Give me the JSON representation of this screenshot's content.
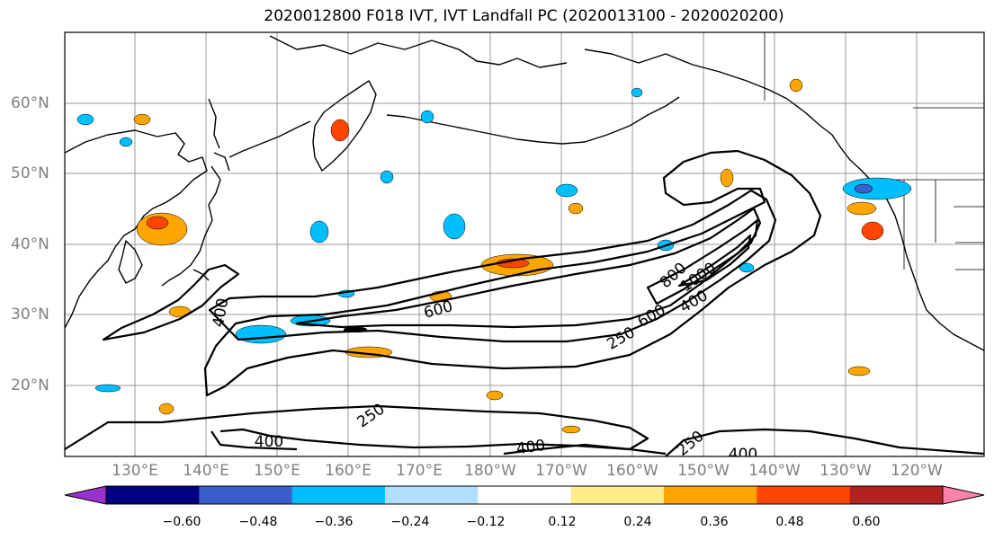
{
  "title": "2020012800 F018 IVT, IVT Landfall PC (2020013100 - 2020020200)",
  "lat_labels": [
    "60°N",
    "50°N",
    "40°N",
    "30°N",
    "20°N"
  ],
  "lon_labels": [
    "130°E",
    "140°E",
    "150°E",
    "160°E",
    "170°E",
    "180°W",
    "170°W",
    "160°W",
    "150°W",
    "140°W",
    "130°W",
    "120°W"
  ],
  "colorbar": {
    "colors": [
      "#9932CC",
      "#000080",
      "#3A5FCD",
      "#00BFFF",
      "#B2DFFF",
      "#FFFFFF",
      "#FFEC8B",
      "#FFA500",
      "#FF4500",
      "#B22222",
      "#FF82AB"
    ],
    "tick_labels": [
      "−0.60",
      "−0.48",
      "−0.36",
      "−0.24",
      "−0.12",
      "0.12",
      "0.24",
      "0.36",
      "0.48",
      "0.60"
    ]
  },
  "contour_labels": [
    "400",
    "600",
    "250",
    "600",
    "400",
    "800",
    "1000",
    "250",
    "400",
    "400",
    "250",
    "400"
  ]
}
